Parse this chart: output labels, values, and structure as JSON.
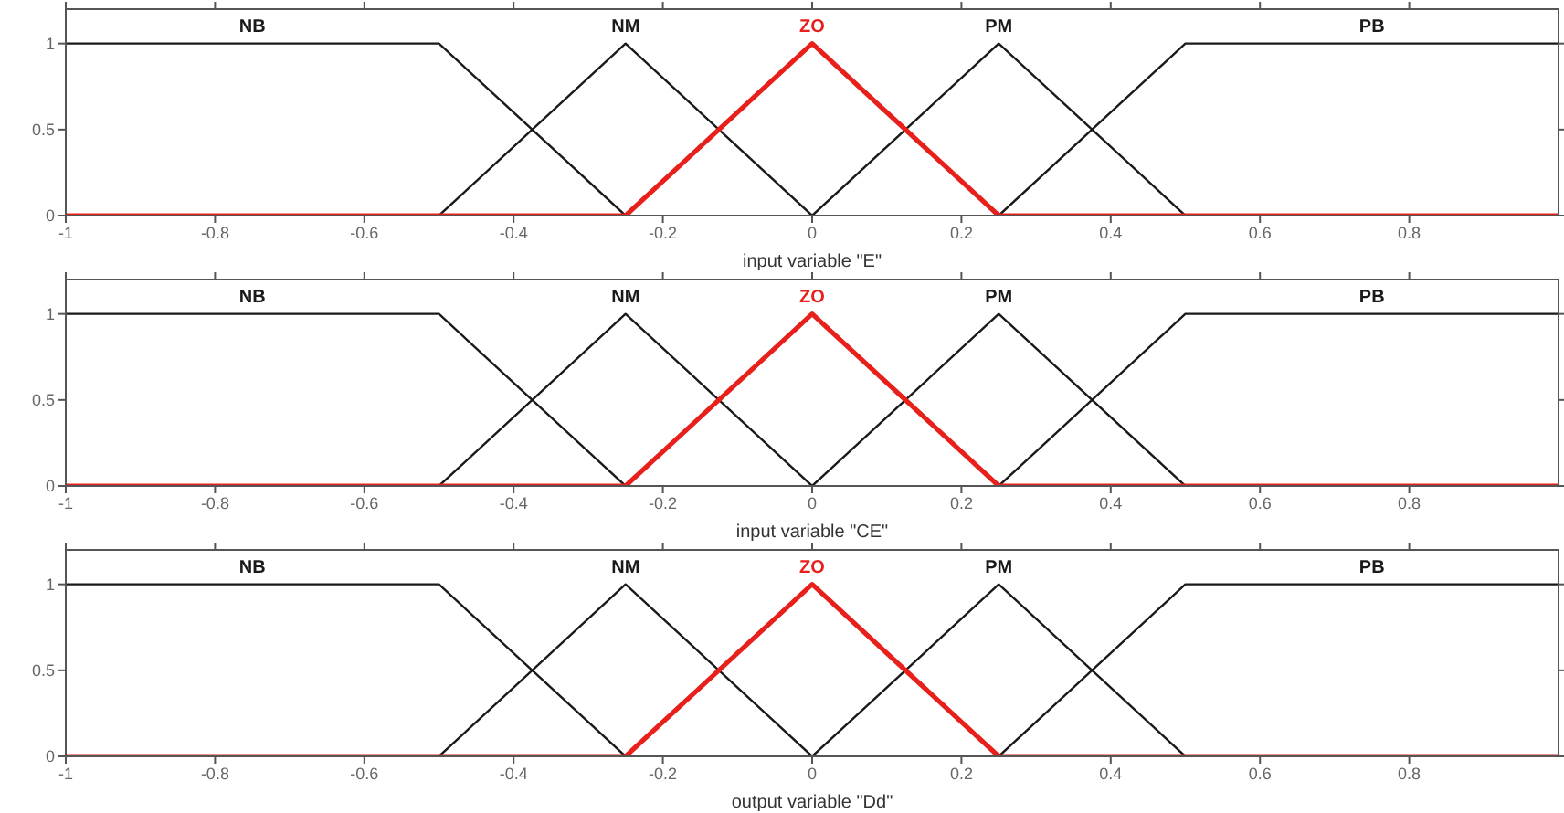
{
  "chart_data": [
    {
      "type": "line",
      "xlabel": "input variable \"E\"",
      "xlim": [
        -1,
        1
      ],
      "ylim": [
        0,
        1.2
      ],
      "xticks": [
        -1,
        -0.8,
        -0.6,
        -0.4,
        -0.2,
        0,
        0.2,
        0.4,
        0.6,
        0.8
      ],
      "yticks": [
        0,
        0.5,
        1
      ],
      "series": [
        {
          "name": "NB",
          "color": "#1a1a1a",
          "x": [
            -1,
            -0.5,
            -0.25
          ],
          "values": [
            1,
            1,
            0
          ]
        },
        {
          "name": "NM",
          "color": "#1a1a1a",
          "x": [
            -0.5,
            -0.25,
            0
          ],
          "values": [
            0,
            1,
            0
          ]
        },
        {
          "name": "PM",
          "color": "#1a1a1a",
          "x": [
            0,
            0.25,
            0.5
          ],
          "values": [
            0,
            1,
            0
          ]
        },
        {
          "name": "PB",
          "color": "#1a1a1a",
          "x": [
            0.25,
            0.5,
            1
          ],
          "values": [
            0,
            1,
            1
          ]
        },
        {
          "name": "ZO",
          "color": "#e8201c",
          "x": [
            -1,
            -0.25,
            0,
            0.25,
            1
          ],
          "values": [
            0,
            0,
            1,
            0,
            0
          ]
        }
      ]
    },
    {
      "type": "line",
      "xlabel": "input variable \"CE\"",
      "xlim": [
        -1,
        1
      ],
      "ylim": [
        0,
        1.2
      ],
      "xticks": [
        -1,
        -0.8,
        -0.6,
        -0.4,
        -0.2,
        0,
        0.2,
        0.4,
        0.6,
        0.8
      ],
      "yticks": [
        0,
        0.5,
        1
      ],
      "series": [
        {
          "name": "NB",
          "color": "#1a1a1a",
          "x": [
            -1,
            -0.5,
            -0.25
          ],
          "values": [
            1,
            1,
            0
          ]
        },
        {
          "name": "NM",
          "color": "#1a1a1a",
          "x": [
            -0.5,
            -0.25,
            0
          ],
          "values": [
            0,
            1,
            0
          ]
        },
        {
          "name": "PM",
          "color": "#1a1a1a",
          "x": [
            0,
            0.25,
            0.5
          ],
          "values": [
            0,
            1,
            0
          ]
        },
        {
          "name": "PB",
          "color": "#1a1a1a",
          "x": [
            0.25,
            0.5,
            1
          ],
          "values": [
            0,
            1,
            1
          ]
        },
        {
          "name": "ZO",
          "color": "#e8201c",
          "x": [
            -1,
            -0.25,
            0,
            0.25,
            1
          ],
          "values": [
            0,
            0,
            1,
            0,
            0
          ]
        }
      ]
    },
    {
      "type": "line",
      "xlabel": "output variable \"Dd\"",
      "xlim": [
        -1,
        1
      ],
      "ylim": [
        0,
        1.2
      ],
      "xticks": [
        -1,
        -0.8,
        -0.6,
        -0.4,
        -0.2,
        0,
        0.2,
        0.4,
        0.6,
        0.8
      ],
      "yticks": [
        0,
        0.5,
        1
      ],
      "series": [
        {
          "name": "NB",
          "color": "#1a1a1a",
          "x": [
            -1,
            -0.5,
            -0.25
          ],
          "values": [
            1,
            1,
            0
          ]
        },
        {
          "name": "NM",
          "color": "#1a1a1a",
          "x": [
            -0.5,
            -0.25,
            0
          ],
          "values": [
            0,
            1,
            0
          ]
        },
        {
          "name": "PM",
          "color": "#1a1a1a",
          "x": [
            0,
            0.25,
            0.5
          ],
          "values": [
            0,
            1,
            0
          ]
        },
        {
          "name": "PB",
          "color": "#1a1a1a",
          "x": [
            0.25,
            0.5,
            1
          ],
          "values": [
            0,
            1,
            1
          ]
        },
        {
          "name": "ZO",
          "color": "#e8201c",
          "x": [
            -1,
            -0.25,
            0,
            0.25,
            1
          ],
          "values": [
            0,
            0,
            1,
            0,
            0
          ]
        }
      ]
    }
  ]
}
